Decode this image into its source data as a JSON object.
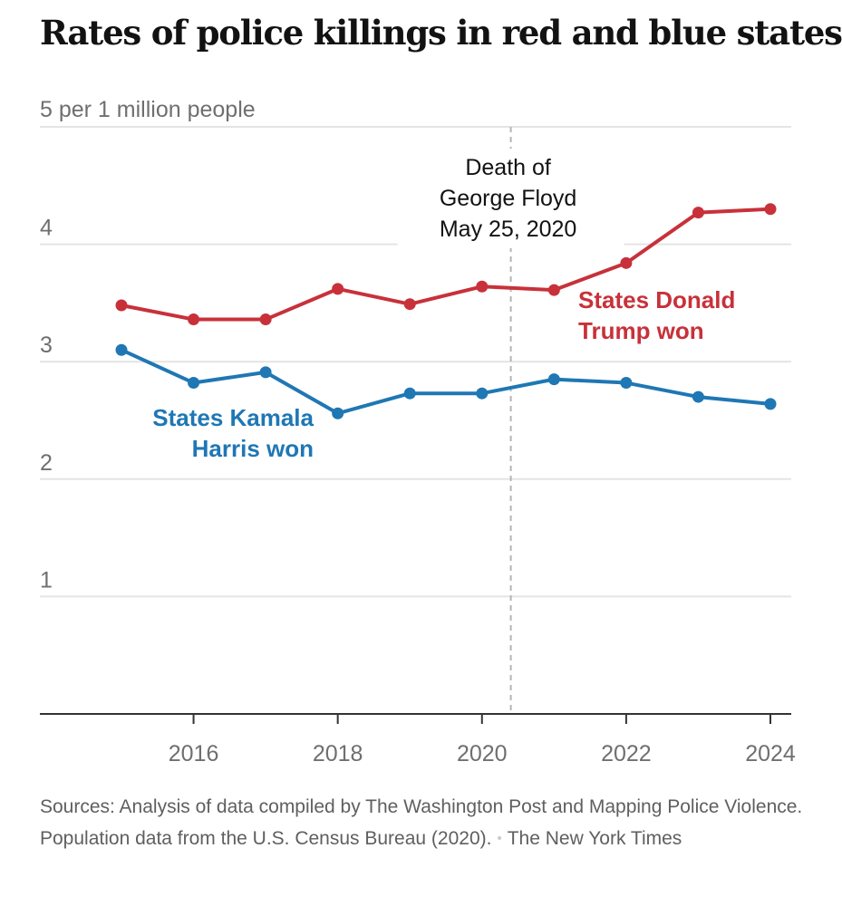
{
  "title": "Rates of police killings in red and blue states",
  "chart_data": {
    "type": "line",
    "title": "Rates of police killings in red and blue states",
    "ylabel": "5 per 1 million people",
    "xlabel": "",
    "ylim": [
      0,
      5
    ],
    "xlim": [
      2014,
      2024.3
    ],
    "yticks": [
      1,
      2,
      3,
      4
    ],
    "ytick_labels": [
      "1",
      "2",
      "3",
      "4"
    ],
    "xticks": [
      2016,
      2018,
      2020,
      2022,
      2024
    ],
    "xtick_labels": [
      "2016",
      "2018",
      "2020",
      "2022",
      "2024"
    ],
    "grid": true,
    "x": [
      2015,
      2016,
      2017,
      2018,
      2019,
      2020,
      2021,
      2022,
      2023,
      2024
    ],
    "series": [
      {
        "name": "States Donald Trump won",
        "label_lines": [
          "States Donald",
          "Trump won"
        ],
        "color": "#c8313a",
        "values": [
          3.48,
          3.36,
          3.36,
          3.62,
          3.49,
          3.64,
          3.61,
          3.84,
          4.27,
          4.3
        ]
      },
      {
        "name": "States Kamala Harris won",
        "label_lines": [
          "States Kamala",
          "Harris won"
        ],
        "color": "#1f77b4",
        "values": [
          3.1,
          2.82,
          2.91,
          2.56,
          2.73,
          2.73,
          2.85,
          2.82,
          2.7,
          2.64
        ]
      }
    ],
    "annotations": [
      {
        "x": 2020.4,
        "style": "dashed-vertical",
        "lines": [
          "Death of",
          "George Floyd",
          "May 25, 2020"
        ]
      }
    ]
  },
  "source": {
    "text": "Sources: Analysis of data compiled by The Washington Post and Mapping Police Violence. Population data from the U.S. Census Bureau (2020).",
    "separator": "•",
    "credit": "The New York Times"
  }
}
